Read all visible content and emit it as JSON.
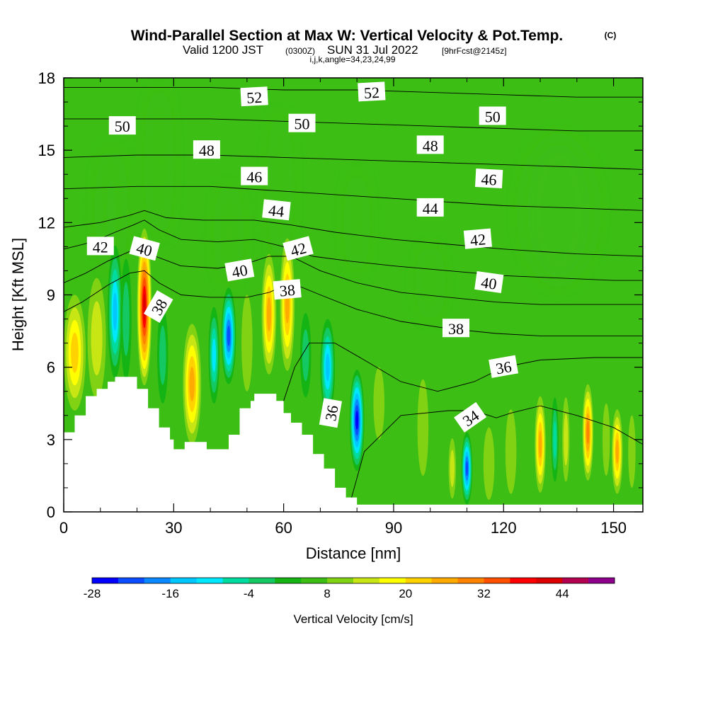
{
  "chart_data": {
    "type": "heatmap",
    "title": "Wind-Parallel Section at Max W: Vertical Velocity & Pot.Temp.",
    "title_mark": "(C)",
    "subtitle_parts": [
      "Valid 1200 JST",
      "(0300Z)",
      "SUN 31 Jul 2022",
      "[9hrFcst@2145z]"
    ],
    "subtitle2": "i,j,k,angle=34,23,24,99",
    "xlabel": "Distance [nm]",
    "ylabel": "Height [Kft MSL]",
    "xlim": [
      0,
      158
    ],
    "ylim": [
      0,
      18
    ],
    "xticks": [
      0,
      30,
      60,
      90,
      120,
      150
    ],
    "yticks": [
      0,
      3,
      6,
      9,
      12,
      15,
      18
    ],
    "colorbar": {
      "label": "Vertical Velocity [cm/s]",
      "min": -28,
      "max": 52,
      "step": 4,
      "tick_values": [
        -28,
        -16,
        -4,
        8,
        20,
        32,
        44
      ],
      "colors": [
        "#0000ff",
        "#0a4cff",
        "#0a88ff",
        "#00c8ff",
        "#00e8ff",
        "#00dca0",
        "#14c864",
        "#14b414",
        "#3cbe14",
        "#82d214",
        "#c8e614",
        "#ffff00",
        "#ffd200",
        "#ffaa00",
        "#ff8200",
        "#ff5000",
        "#ff0000",
        "#dc0000",
        "#b40050",
        "#8c008c"
      ]
    },
    "terrain_profile": [
      [
        0,
        3.3
      ],
      [
        3,
        3.3
      ],
      [
        3,
        4
      ],
      [
        6,
        4
      ],
      [
        6,
        4.8
      ],
      [
        9,
        4.8
      ],
      [
        9,
        5.1
      ],
      [
        12,
        5.1
      ],
      [
        12,
        5.4
      ],
      [
        14,
        5.4
      ],
      [
        14,
        5.6
      ],
      [
        20,
        5.6
      ],
      [
        20,
        5.1
      ],
      [
        23,
        5.1
      ],
      [
        23,
        4.3
      ],
      [
        26,
        4.3
      ],
      [
        26,
        3.5
      ],
      [
        29,
        3.5
      ],
      [
        29,
        3
      ],
      [
        30,
        3
      ],
      [
        30,
        2.6
      ],
      [
        33,
        2.6
      ],
      [
        33,
        2.9
      ],
      [
        39,
        2.9
      ],
      [
        39,
        2.6
      ],
      [
        45,
        2.6
      ],
      [
        45,
        3.2
      ],
      [
        48,
        3.2
      ],
      [
        48,
        4.3
      ],
      [
        51,
        4.3
      ],
      [
        51,
        4.6
      ],
      [
        52,
        4.6
      ],
      [
        52,
        4.9
      ],
      [
        58,
        4.9
      ],
      [
        58,
        4.6
      ],
      [
        60,
        4.6
      ],
      [
        60,
        4.1
      ],
      [
        62,
        4.1
      ],
      [
        62,
        3.7
      ],
      [
        65,
        3.7
      ],
      [
        65,
        3.2
      ],
      [
        68,
        3.2
      ],
      [
        68,
        2.4
      ],
      [
        71,
        2.4
      ],
      [
        71,
        1.8
      ],
      [
        74,
        1.8
      ],
      [
        74,
        1
      ],
      [
        77,
        1
      ],
      [
        77,
        0.6
      ],
      [
        80,
        0.6
      ],
      [
        80,
        0.3
      ],
      [
        158,
        0.3
      ]
    ],
    "w_cells": [
      {
        "x": 3,
        "z": 6.6,
        "w": 6,
        "h": 4.8,
        "v": 18
      },
      {
        "x": 9,
        "z": 7.2,
        "w": 5,
        "h": 5,
        "v": 12
      },
      {
        "x": 14,
        "z": 8.3,
        "w": 4,
        "h": 5.5,
        "v": -16
      },
      {
        "x": 17,
        "z": 8.0,
        "w": 3,
        "h": 5,
        "v": -4
      },
      {
        "x": 22,
        "z": 8.5,
        "w": 4,
        "h": 6.5,
        "v": 40
      },
      {
        "x": 27,
        "z": 6.5,
        "w": 3,
        "h": 4,
        "v": -4
      },
      {
        "x": 35,
        "z": 5.3,
        "w": 5,
        "h": 5,
        "v": 22
      },
      {
        "x": 41,
        "z": 6.5,
        "w": 3,
        "h": 4,
        "v": -12
      },
      {
        "x": 45,
        "z": 7.3,
        "w": 4,
        "h": 4,
        "v": -24
      },
      {
        "x": 50,
        "z": 7.0,
        "w": 3,
        "h": 4,
        "v": 8
      },
      {
        "x": 56,
        "z": 8.2,
        "w": 4,
        "h": 5,
        "v": 24
      },
      {
        "x": 61,
        "z": 8.6,
        "w": 4,
        "h": 5.5,
        "v": 22
      },
      {
        "x": 66,
        "z": 6.5,
        "w": 3,
        "h": 3.5,
        "v": -4
      },
      {
        "x": 72,
        "z": 6.0,
        "w": 4,
        "h": 4,
        "v": -16
      },
      {
        "x": 80,
        "z": 3.8,
        "w": 4,
        "h": 4.2,
        "v": -28
      },
      {
        "x": 86,
        "z": 4.5,
        "w": 3,
        "h": 3,
        "v": 8
      },
      {
        "x": 98,
        "z": 3.5,
        "w": 3,
        "h": 4,
        "v": 6
      },
      {
        "x": 106,
        "z": 1.8,
        "w": 2,
        "h": 2.5,
        "v": 10
      },
      {
        "x": 110,
        "z": 1.8,
        "w": 3,
        "h": 3,
        "v": -24
      },
      {
        "x": 116,
        "z": 2.0,
        "w": 3,
        "h": 3,
        "v": 8
      },
      {
        "x": 122,
        "z": 2.5,
        "w": 3,
        "h": 3.5,
        "v": 6
      },
      {
        "x": 130,
        "z": 2.8,
        "w": 3,
        "h": 4,
        "v": 22
      },
      {
        "x": 134,
        "z": 3.0,
        "w": 2,
        "h": 3.5,
        "v": -8
      },
      {
        "x": 137,
        "z": 3.0,
        "w": 2,
        "h": 3.5,
        "v": 10
      },
      {
        "x": 143,
        "z": 3.3,
        "w": 3,
        "h": 4,
        "v": 28
      },
      {
        "x": 148,
        "z": 3.0,
        "w": 2,
        "h": 3,
        "v": 6
      },
      {
        "x": 151,
        "z": 2.5,
        "w": 3,
        "h": 3.5,
        "v": 22
      },
      {
        "x": 155,
        "z": 2.5,
        "w": 2,
        "h": 3,
        "v": 8
      }
    ],
    "green_bands": [
      {
        "x": 13,
        "z": 12.5,
        "w": 6,
        "h": 5,
        "v": 4
      },
      {
        "x": 26,
        "z": 14.5,
        "w": 5,
        "h": 6,
        "v": 4
      },
      {
        "x": 45,
        "z": 11.5,
        "w": 5,
        "h": 4,
        "v": 4
      },
      {
        "x": 59,
        "z": 13.5,
        "w": 4,
        "h": 6,
        "v": 4
      },
      {
        "x": 80,
        "z": 12.0,
        "w": 4,
        "h": 4,
        "v": 4
      },
      {
        "x": 135,
        "z": 12.5,
        "w": 20,
        "h": 6,
        "v": 4
      },
      {
        "x": 100,
        "z": 9.5,
        "w": 5,
        "h": 3,
        "v": 4
      }
    ],
    "theta_contours": [
      {
        "level": "34",
        "points": [
          [
            78,
            0.3
          ],
          [
            82,
            2.5
          ],
          [
            92,
            4.0
          ],
          [
            105,
            4.2
          ],
          [
            112,
            4.2
          ],
          [
            118,
            3.9
          ],
          [
            122,
            4.1
          ],
          [
            130,
            4.4
          ],
          [
            140,
            4.0
          ],
          [
            150,
            3.5
          ],
          [
            158,
            2.8
          ]
        ]
      },
      {
        "level": "36",
        "points": [
          [
            60,
            4.6
          ],
          [
            63,
            6.0
          ],
          [
            67,
            7.0
          ],
          [
            74,
            7.0
          ],
          [
            82,
            6.3
          ],
          [
            92,
            5.4
          ],
          [
            102,
            5.0
          ],
          [
            112,
            5.4
          ],
          [
            120,
            6.0
          ],
          [
            130,
            6.3
          ],
          [
            145,
            6.4
          ],
          [
            158,
            6.4
          ]
        ]
      },
      {
        "level": "38",
        "points": [
          [
            0,
            8.3
          ],
          [
            5,
            8.7
          ],
          [
            12,
            9.4
          ],
          [
            18,
            9.9
          ],
          [
            22,
            10.0
          ],
          [
            26,
            9.5
          ],
          [
            32,
            9.0
          ],
          [
            40,
            8.9
          ],
          [
            50,
            8.9
          ],
          [
            56,
            9.1
          ],
          [
            62,
            9.5
          ],
          [
            70,
            9.0
          ],
          [
            80,
            8.4
          ],
          [
            92,
            7.9
          ],
          [
            105,
            7.6
          ],
          [
            118,
            7.4
          ],
          [
            130,
            7.3
          ],
          [
            145,
            7.3
          ],
          [
            158,
            7.3
          ]
        ]
      },
      {
        "level": "40",
        "points": [
          [
            0,
            9.5
          ],
          [
            6,
            9.9
          ],
          [
            12,
            10.4
          ],
          [
            18,
            10.8
          ],
          [
            21,
            11.0
          ],
          [
            25,
            10.6
          ],
          [
            32,
            10.2
          ],
          [
            42,
            10.1
          ],
          [
            50,
            10.3
          ],
          [
            56,
            10.6
          ],
          [
            62,
            10.6
          ],
          [
            70,
            10.0
          ],
          [
            80,
            9.5
          ],
          [
            92,
            9.1
          ],
          [
            105,
            8.9
          ],
          [
            118,
            8.7
          ],
          [
            130,
            8.6
          ],
          [
            145,
            8.6
          ],
          [
            158,
            8.6
          ]
        ]
      },
      {
        "level": "42",
        "points": [
          [
            0,
            10.9
          ],
          [
            8,
            11.2
          ],
          [
            14,
            11.6
          ],
          [
            19,
            11.9
          ],
          [
            22,
            12.1
          ],
          [
            26,
            11.7
          ],
          [
            32,
            11.3
          ],
          [
            42,
            11.2
          ],
          [
            52,
            11.3
          ],
          [
            60,
            11.0
          ],
          [
            68,
            10.6
          ],
          [
            78,
            10.4
          ],
          [
            90,
            10.2
          ],
          [
            105,
            10.0
          ],
          [
            120,
            9.8
          ],
          [
            135,
            9.7
          ],
          [
            150,
            9.6
          ],
          [
            158,
            9.6
          ]
        ]
      },
      {
        "level": "44",
        "points": [
          [
            0,
            11.8
          ],
          [
            10,
            12.0
          ],
          [
            18,
            12.3
          ],
          [
            22,
            12.5
          ],
          [
            28,
            12.2
          ],
          [
            38,
            12.1
          ],
          [
            52,
            12.1
          ],
          [
            62,
            11.9
          ],
          [
            74,
            11.6
          ],
          [
            90,
            11.3
          ],
          [
            105,
            11.1
          ],
          [
            120,
            10.9
          ],
          [
            140,
            10.7
          ],
          [
            158,
            10.6
          ]
        ]
      },
      {
        "level": "46",
        "points": [
          [
            0,
            13.4
          ],
          [
            20,
            13.5
          ],
          [
            40,
            13.5
          ],
          [
            60,
            13.3
          ],
          [
            80,
            13.1
          ],
          [
            100,
            12.9
          ],
          [
            120,
            12.7
          ],
          [
            140,
            12.6
          ],
          [
            158,
            12.5
          ]
        ]
      },
      {
        "level": "48",
        "points": [
          [
            0,
            14.7
          ],
          [
            20,
            14.8
          ],
          [
            40,
            14.8
          ],
          [
            60,
            14.7
          ],
          [
            80,
            14.6
          ],
          [
            100,
            14.5
          ],
          [
            120,
            14.4
          ],
          [
            140,
            14.3
          ],
          [
            158,
            14.2
          ]
        ]
      },
      {
        "level": "50",
        "points": [
          [
            0,
            16.3
          ],
          [
            20,
            16.3
          ],
          [
            40,
            16.3
          ],
          [
            60,
            16.2
          ],
          [
            80,
            16.1
          ],
          [
            100,
            16.0
          ],
          [
            120,
            15.9
          ],
          [
            140,
            15.8
          ],
          [
            158,
            15.8
          ]
        ]
      },
      {
        "level": "52",
        "points": [
          [
            0,
            17.6
          ],
          [
            20,
            17.6
          ],
          [
            40,
            17.6
          ],
          [
            60,
            17.5
          ],
          [
            80,
            17.5
          ],
          [
            100,
            17.4
          ],
          [
            120,
            17.3
          ],
          [
            140,
            17.2
          ],
          [
            158,
            17.2
          ]
        ]
      }
    ],
    "contour_labels": [
      {
        "text": "52",
        "x": 52,
        "z": 17.2,
        "rot": -3
      },
      {
        "text": "52",
        "x": 84,
        "z": 17.4,
        "rot": -3
      },
      {
        "text": "50",
        "x": 16,
        "z": 16.0,
        "rot": 0
      },
      {
        "text": "50",
        "x": 65,
        "z": 16.1,
        "rot": 0
      },
      {
        "text": "50",
        "x": 117,
        "z": 16.4,
        "rot": 0
      },
      {
        "text": "48",
        "x": 39,
        "z": 15.0,
        "rot": 0
      },
      {
        "text": "48",
        "x": 100,
        "z": 15.2,
        "rot": 0
      },
      {
        "text": "46",
        "x": 52,
        "z": 13.9,
        "rot": 0
      },
      {
        "text": "46",
        "x": 116,
        "z": 13.8,
        "rot": 3
      },
      {
        "text": "44",
        "x": 58,
        "z": 12.5,
        "rot": 6
      },
      {
        "text": "44",
        "x": 100,
        "z": 12.6,
        "rot": 0
      },
      {
        "text": "42",
        "x": 10,
        "z": 11.0,
        "rot": 0
      },
      {
        "text": "42",
        "x": 64,
        "z": 10.9,
        "rot": -15
      },
      {
        "text": "42",
        "x": 113,
        "z": 11.3,
        "rot": -5
      },
      {
        "text": "40",
        "x": 22,
        "z": 10.9,
        "rot": 15
      },
      {
        "text": "40",
        "x": 48,
        "z": 10.0,
        "rot": -10
      },
      {
        "text": "40",
        "x": 116,
        "z": 9.5,
        "rot": 8
      },
      {
        "text": "38",
        "x": 26,
        "z": 8.5,
        "rot": -60
      },
      {
        "text": "38",
        "x": 61,
        "z": 9.2,
        "rot": -5
      },
      {
        "text": "38",
        "x": 107,
        "z": 7.6,
        "rot": 0
      },
      {
        "text": "36",
        "x": 73,
        "z": 4.1,
        "rot": -80
      },
      {
        "text": "36",
        "x": 120,
        "z": 6.0,
        "rot": -10
      },
      {
        "text": "34",
        "x": 111,
        "z": 3.9,
        "rot": -35
      }
    ]
  }
}
